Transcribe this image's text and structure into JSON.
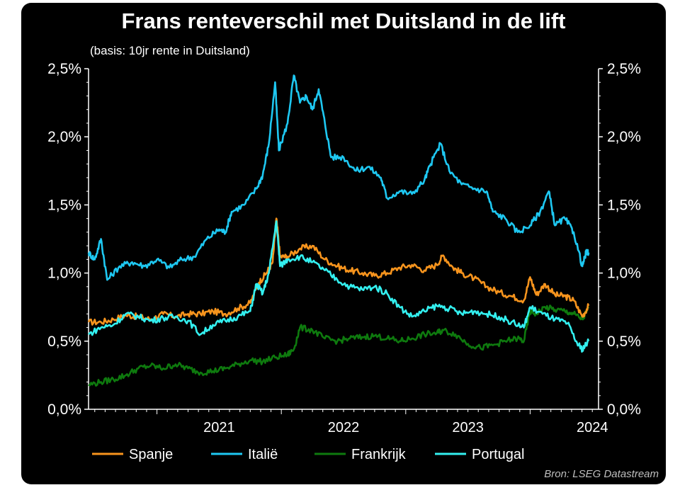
{
  "chart_data": {
    "type": "line",
    "title": "Frans renteverschil met Duitsland in de lift",
    "subtitle": "(basis: 10jr rente in Duitsland)",
    "source": "Bron: LSEG Datastream",
    "y_ticks": [
      "0,0%",
      "0,5%",
      "1,0%",
      "1,5%",
      "2,0%",
      "2,5%"
    ],
    "y_tick_values": [
      0.0,
      0.5,
      1.0,
      1.5,
      2.0,
      2.5
    ],
    "ylim": [
      0.0,
      2.5
    ],
    "x_ticks": [
      "2021",
      "2022",
      "2023",
      "2024"
    ],
    "xlim": [
      2020.45,
      2024.55
    ],
    "legend_position": "bottom",
    "grid": false,
    "series": [
      {
        "name": "Spanje",
        "color": "#f7941d",
        "points": [
          [
            2020.45,
            0.64
          ],
          [
            2020.55,
            0.64
          ],
          [
            2020.65,
            0.66
          ],
          [
            2020.75,
            0.69
          ],
          [
            2020.85,
            0.68
          ],
          [
            2020.95,
            0.66
          ],
          [
            2021.05,
            0.7
          ],
          [
            2021.15,
            0.68
          ],
          [
            2021.25,
            0.7
          ],
          [
            2021.35,
            0.7
          ],
          [
            2021.45,
            0.72
          ],
          [
            2021.55,
            0.7
          ],
          [
            2021.65,
            0.74
          ],
          [
            2021.75,
            0.78
          ],
          [
            2021.82,
            0.93
          ],
          [
            2021.88,
            1.0
          ],
          [
            2021.93,
            1.08
          ],
          [
            2021.96,
            1.4
          ],
          [
            2021.99,
            1.12
          ],
          [
            2022.05,
            1.12
          ],
          [
            2022.15,
            1.18
          ],
          [
            2022.25,
            1.2
          ],
          [
            2022.35,
            1.1
          ],
          [
            2022.45,
            1.05
          ],
          [
            2022.55,
            1.02
          ],
          [
            2022.65,
            1.0
          ],
          [
            2022.75,
            0.98
          ],
          [
            2022.85,
            1.0
          ],
          [
            2022.95,
            1.04
          ],
          [
            2023.05,
            1.06
          ],
          [
            2023.15,
            1.02
          ],
          [
            2023.25,
            1.06
          ],
          [
            2023.3,
            1.13
          ],
          [
            2023.38,
            1.04
          ],
          [
            2023.45,
            1.0
          ],
          [
            2023.55,
            0.96
          ],
          [
            2023.65,
            0.9
          ],
          [
            2023.75,
            0.86
          ],
          [
            2023.85,
            0.83
          ],
          [
            2023.95,
            0.8
          ],
          [
            2024.0,
            0.97
          ],
          [
            2024.05,
            0.84
          ],
          [
            2024.12,
            0.92
          ],
          [
            2024.2,
            0.84
          ],
          [
            2024.28,
            0.83
          ],
          [
            2024.35,
            0.8
          ],
          [
            2024.42,
            0.68
          ],
          [
            2024.47,
            0.76
          ]
        ]
      },
      {
        "name": "Italië",
        "color": "#1ec8f2",
        "points": [
          [
            2020.45,
            1.15
          ],
          [
            2020.5,
            1.1
          ],
          [
            2020.55,
            1.25
          ],
          [
            2020.6,
            0.95
          ],
          [
            2020.7,
            1.05
          ],
          [
            2020.8,
            1.08
          ],
          [
            2020.9,
            1.05
          ],
          [
            2021.0,
            1.1
          ],
          [
            2021.1,
            1.04
          ],
          [
            2021.2,
            1.1
          ],
          [
            2021.3,
            1.12
          ],
          [
            2021.4,
            1.25
          ],
          [
            2021.5,
            1.32
          ],
          [
            2021.55,
            1.3
          ],
          [
            2021.6,
            1.45
          ],
          [
            2021.7,
            1.5
          ],
          [
            2021.8,
            1.62
          ],
          [
            2021.85,
            1.72
          ],
          [
            2021.9,
            1.95
          ],
          [
            2021.95,
            2.4
          ],
          [
            2021.98,
            1.9
          ],
          [
            2022.05,
            2.1
          ],
          [
            2022.1,
            2.45
          ],
          [
            2022.15,
            2.25
          ],
          [
            2022.2,
            2.3
          ],
          [
            2022.25,
            2.2
          ],
          [
            2022.3,
            2.35
          ],
          [
            2022.35,
            2.1
          ],
          [
            2022.4,
            1.85
          ],
          [
            2022.5,
            1.85
          ],
          [
            2022.6,
            1.75
          ],
          [
            2022.7,
            1.78
          ],
          [
            2022.8,
            1.7
          ],
          [
            2022.85,
            1.55
          ],
          [
            2022.95,
            1.6
          ],
          [
            2023.05,
            1.58
          ],
          [
            2023.15,
            1.68
          ],
          [
            2023.2,
            1.8
          ],
          [
            2023.28,
            1.95
          ],
          [
            2023.35,
            1.75
          ],
          [
            2023.45,
            1.65
          ],
          [
            2023.55,
            1.62
          ],
          [
            2023.65,
            1.6
          ],
          [
            2023.7,
            1.45
          ],
          [
            2023.8,
            1.4
          ],
          [
            2023.9,
            1.3
          ],
          [
            2024.0,
            1.35
          ],
          [
            2024.08,
            1.45
          ],
          [
            2024.15,
            1.6
          ],
          [
            2024.2,
            1.35
          ],
          [
            2024.28,
            1.4
          ],
          [
            2024.35,
            1.3
          ],
          [
            2024.42,
            1.05
          ],
          [
            2024.45,
            1.15
          ],
          [
            2024.47,
            1.15
          ]
        ]
      },
      {
        "name": "Frankrijk",
        "color": "#0e7a0e",
        "points": [
          [
            2020.45,
            0.18
          ],
          [
            2020.55,
            0.2
          ],
          [
            2020.65,
            0.22
          ],
          [
            2020.75,
            0.25
          ],
          [
            2020.85,
            0.3
          ],
          [
            2020.95,
            0.32
          ],
          [
            2021.05,
            0.3
          ],
          [
            2021.15,
            0.33
          ],
          [
            2021.25,
            0.3
          ],
          [
            2021.35,
            0.27
          ],
          [
            2021.45,
            0.28
          ],
          [
            2021.55,
            0.3
          ],
          [
            2021.65,
            0.33
          ],
          [
            2021.75,
            0.36
          ],
          [
            2021.85,
            0.35
          ],
          [
            2021.95,
            0.38
          ],
          [
            2022.05,
            0.4
          ],
          [
            2022.1,
            0.44
          ],
          [
            2022.15,
            0.6
          ],
          [
            2022.25,
            0.58
          ],
          [
            2022.35,
            0.52
          ],
          [
            2022.45,
            0.5
          ],
          [
            2022.55,
            0.52
          ],
          [
            2022.65,
            0.53
          ],
          [
            2022.75,
            0.54
          ],
          [
            2022.85,
            0.52
          ],
          [
            2022.95,
            0.5
          ],
          [
            2023.05,
            0.52
          ],
          [
            2023.15,
            0.55
          ],
          [
            2023.25,
            0.56
          ],
          [
            2023.3,
            0.58
          ],
          [
            2023.4,
            0.55
          ],
          [
            2023.5,
            0.48
          ],
          [
            2023.6,
            0.45
          ],
          [
            2023.7,
            0.47
          ],
          [
            2023.8,
            0.5
          ],
          [
            2023.9,
            0.52
          ],
          [
            2023.95,
            0.5
          ],
          [
            2024.0,
            0.72
          ],
          [
            2024.05,
            0.7
          ],
          [
            2024.12,
            0.75
          ],
          [
            2024.2,
            0.73
          ],
          [
            2024.28,
            0.72
          ],
          [
            2024.35,
            0.7
          ],
          [
            2024.42,
            0.66
          ],
          [
            2024.47,
            0.74
          ]
        ]
      },
      {
        "name": "Portugal",
        "color": "#33f0f0",
        "points": [
          [
            2020.45,
            0.55
          ],
          [
            2020.55,
            0.6
          ],
          [
            2020.65,
            0.62
          ],
          [
            2020.75,
            0.7
          ],
          [
            2020.85,
            0.68
          ],
          [
            2020.95,
            0.65
          ],
          [
            2021.05,
            0.67
          ],
          [
            2021.15,
            0.68
          ],
          [
            2021.25,
            0.65
          ],
          [
            2021.35,
            0.55
          ],
          [
            2021.45,
            0.62
          ],
          [
            2021.55,
            0.65
          ],
          [
            2021.65,
            0.68
          ],
          [
            2021.75,
            0.72
          ],
          [
            2021.8,
            0.92
          ],
          [
            2021.85,
            0.85
          ],
          [
            2021.9,
            1.0
          ],
          [
            2021.96,
            1.38
          ],
          [
            2021.99,
            1.05
          ],
          [
            2022.05,
            1.1
          ],
          [
            2022.15,
            1.12
          ],
          [
            2022.25,
            1.08
          ],
          [
            2022.35,
            1.02
          ],
          [
            2022.45,
            0.95
          ],
          [
            2022.55,
            0.9
          ],
          [
            2022.65,
            0.88
          ],
          [
            2022.75,
            0.9
          ],
          [
            2022.85,
            0.85
          ],
          [
            2022.95,
            0.75
          ],
          [
            2023.05,
            0.68
          ],
          [
            2023.15,
            0.72
          ],
          [
            2023.25,
            0.76
          ],
          [
            2023.35,
            0.74
          ],
          [
            2023.45,
            0.7
          ],
          [
            2023.55,
            0.72
          ],
          [
            2023.65,
            0.7
          ],
          [
            2023.75,
            0.68
          ],
          [
            2023.85,
            0.64
          ],
          [
            2023.95,
            0.6
          ],
          [
            2024.0,
            0.75
          ],
          [
            2024.1,
            0.7
          ],
          [
            2024.2,
            0.66
          ],
          [
            2024.3,
            0.63
          ],
          [
            2024.38,
            0.48
          ],
          [
            2024.42,
            0.44
          ],
          [
            2024.47,
            0.5
          ]
        ]
      }
    ]
  }
}
